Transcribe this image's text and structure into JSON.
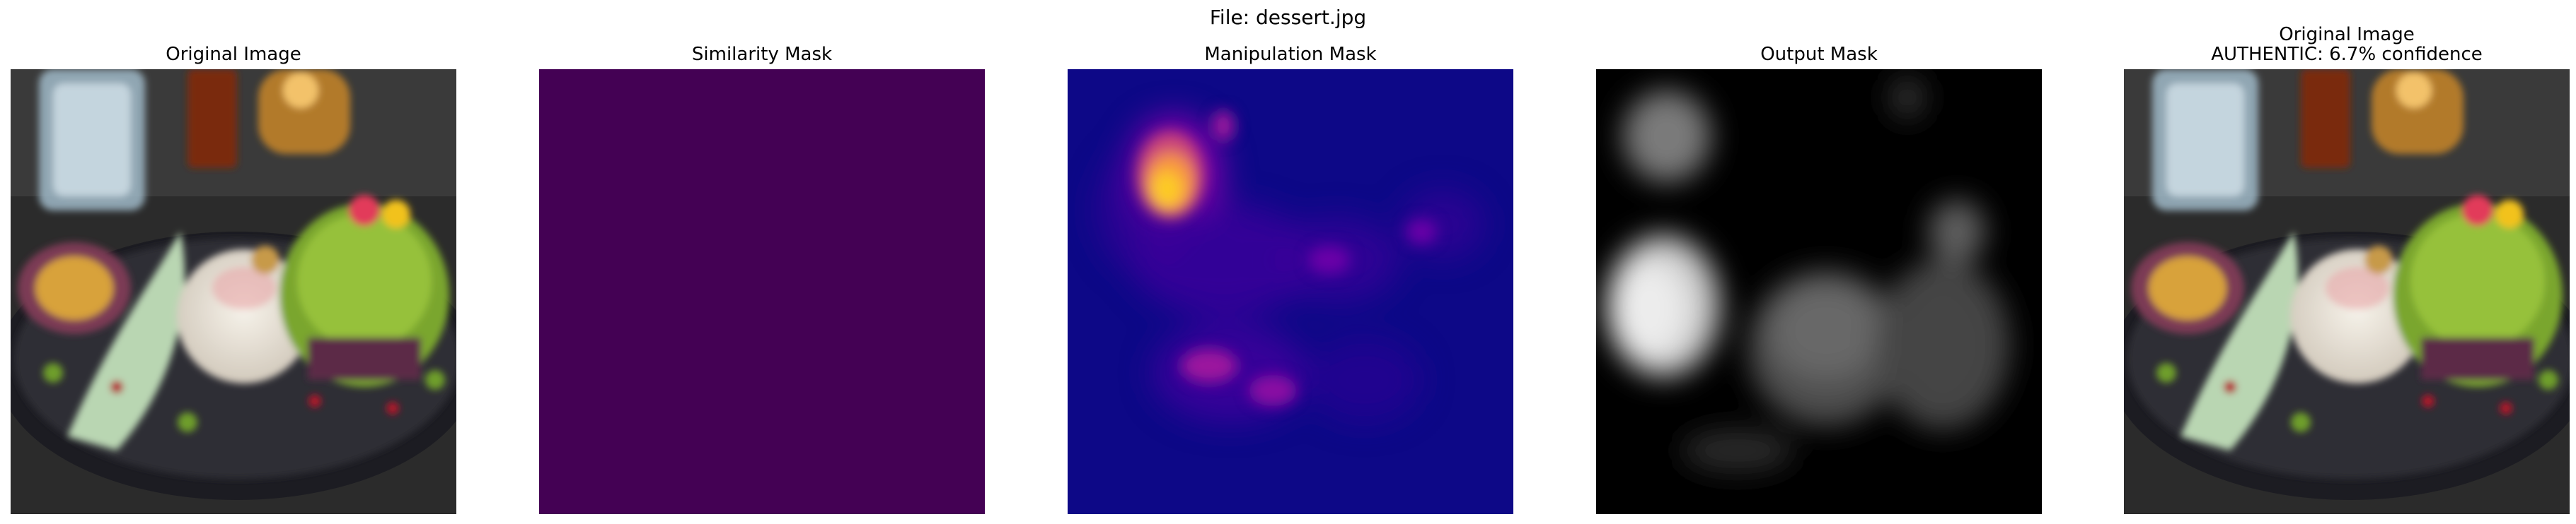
{
  "figure": {
    "file_title": "File: dessert.jpg"
  },
  "panels": [
    {
      "title": "Original Image",
      "content": "photo of a dessert plate"
    },
    {
      "title": "Similarity Mask",
      "content": "uniform purple heatmap"
    },
    {
      "title": "Manipulation Mask",
      "content": "plasma heatmap with bright blob upper-left"
    },
    {
      "title": "Output Mask",
      "content": "grayscale blurred mask"
    },
    {
      "title": "Original Image",
      "subtitle": "AUTHENTIC: 6.7% confidence",
      "content": "photo of a dessert plate"
    }
  ],
  "colors": {
    "similarity_fill": "#440154",
    "plasma_low": "#0d0887",
    "plasma_high": "#f0f921",
    "output_bg": "#000000"
  }
}
